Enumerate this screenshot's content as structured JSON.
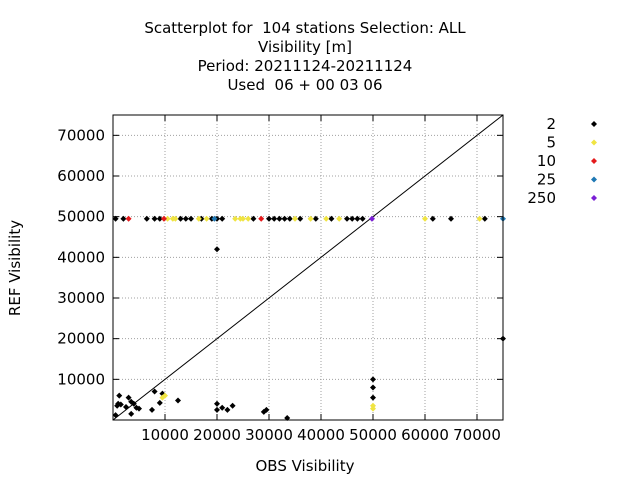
{
  "chart_data": {
    "type": "scatter",
    "title_lines": [
      "Scatterplot for  104 stations Selection: ALL",
      "Visibility [m]",
      "Period: 20211124-20211124",
      "Used  06 + 00 03 06"
    ],
    "xlabel": "OBS Visibility",
    "ylabel": "REF Visibility",
    "xlim": [
      0,
      75000
    ],
    "ylim": [
      0,
      75000
    ],
    "xticks": [
      10000,
      20000,
      30000,
      40000,
      50000,
      60000,
      70000
    ],
    "yticks": [
      10000,
      20000,
      30000,
      40000,
      50000,
      60000,
      70000
    ],
    "grid": true,
    "reference_line": "y=x",
    "legend_position": "right",
    "colors": {
      "2": "#000000",
      "5": "#f0e442",
      "10": "#e41a1c",
      "25": "#1f78b4",
      "250": "#7b1fd6"
    },
    "series": [
      {
        "name": "2",
        "color": "#000000",
        "points": [
          [
            500,
            1200
          ],
          [
            800,
            3500
          ],
          [
            1200,
            6000
          ],
          [
            1000,
            4000
          ],
          [
            1500,
            3800
          ],
          [
            2500,
            3200
          ],
          [
            3000,
            5500
          ],
          [
            3500,
            4500
          ],
          [
            4000,
            4000
          ],
          [
            4500,
            3000
          ],
          [
            5000,
            2800
          ],
          [
            3500,
            1500
          ],
          [
            7500,
            2500
          ],
          [
            8000,
            7000
          ],
          [
            9000,
            4200
          ],
          [
            9500,
            6500
          ],
          [
            12500,
            4800
          ],
          [
            20000,
            42000
          ],
          [
            20000,
            4000
          ],
          [
            20000,
            2500
          ],
          [
            21000,
            3000
          ],
          [
            22000,
            2500
          ],
          [
            23000,
            3500
          ],
          [
            29000,
            2000
          ],
          [
            29500,
            2500
          ],
          [
            33500,
            500
          ],
          [
            50000,
            10000
          ],
          [
            50000,
            8000
          ],
          [
            50000,
            5500
          ],
          [
            75000,
            20000
          ],
          [
            500,
            49500
          ],
          [
            2000,
            49500
          ],
          [
            6500,
            49500
          ],
          [
            8000,
            49500
          ],
          [
            9000,
            49500
          ],
          [
            13000,
            49500
          ],
          [
            14000,
            49500
          ],
          [
            15000,
            49500
          ],
          [
            17000,
            49500
          ],
          [
            19000,
            49500
          ],
          [
            20000,
            49500
          ],
          [
            21000,
            49500
          ],
          [
            27000,
            49500
          ],
          [
            30000,
            49500
          ],
          [
            31000,
            49500
          ],
          [
            32000,
            49500
          ],
          [
            33000,
            49500
          ],
          [
            34000,
            49500
          ],
          [
            36000,
            49500
          ],
          [
            39000,
            49500
          ],
          [
            42000,
            49500
          ],
          [
            45000,
            49500
          ],
          [
            46000,
            49500
          ],
          [
            47000,
            49500
          ],
          [
            48000,
            49500
          ],
          [
            61500,
            49500
          ],
          [
            65000,
            49500
          ],
          [
            71500,
            49500
          ]
        ]
      },
      {
        "name": "5",
        "color": "#f0e442",
        "points": [
          [
            9500,
            5500
          ],
          [
            10000,
            6000
          ],
          [
            50000,
            3500
          ],
          [
            50000,
            2800
          ],
          [
            10500,
            49500
          ],
          [
            11500,
            49500
          ],
          [
            12000,
            49500
          ],
          [
            16500,
            49500
          ],
          [
            18000,
            49500
          ],
          [
            23500,
            49500
          ],
          [
            24500,
            49500
          ],
          [
            25000,
            49500
          ],
          [
            26000,
            49500
          ],
          [
            35000,
            49500
          ],
          [
            38000,
            49500
          ],
          [
            41000,
            49500
          ],
          [
            43500,
            49500
          ],
          [
            60000,
            49500
          ],
          [
            70500,
            49500
          ]
        ]
      },
      {
        "name": "10",
        "color": "#e41a1c",
        "points": [
          [
            3000,
            49500
          ],
          [
            9800,
            49500
          ],
          [
            28500,
            49500
          ]
        ]
      },
      {
        "name": "25",
        "color": "#1f78b4",
        "points": [
          [
            19500,
            49500
          ],
          [
            75000,
            49500
          ]
        ]
      },
      {
        "name": "250",
        "color": "#7b1fd6",
        "points": [
          [
            49800,
            49500
          ]
        ]
      }
    ]
  }
}
